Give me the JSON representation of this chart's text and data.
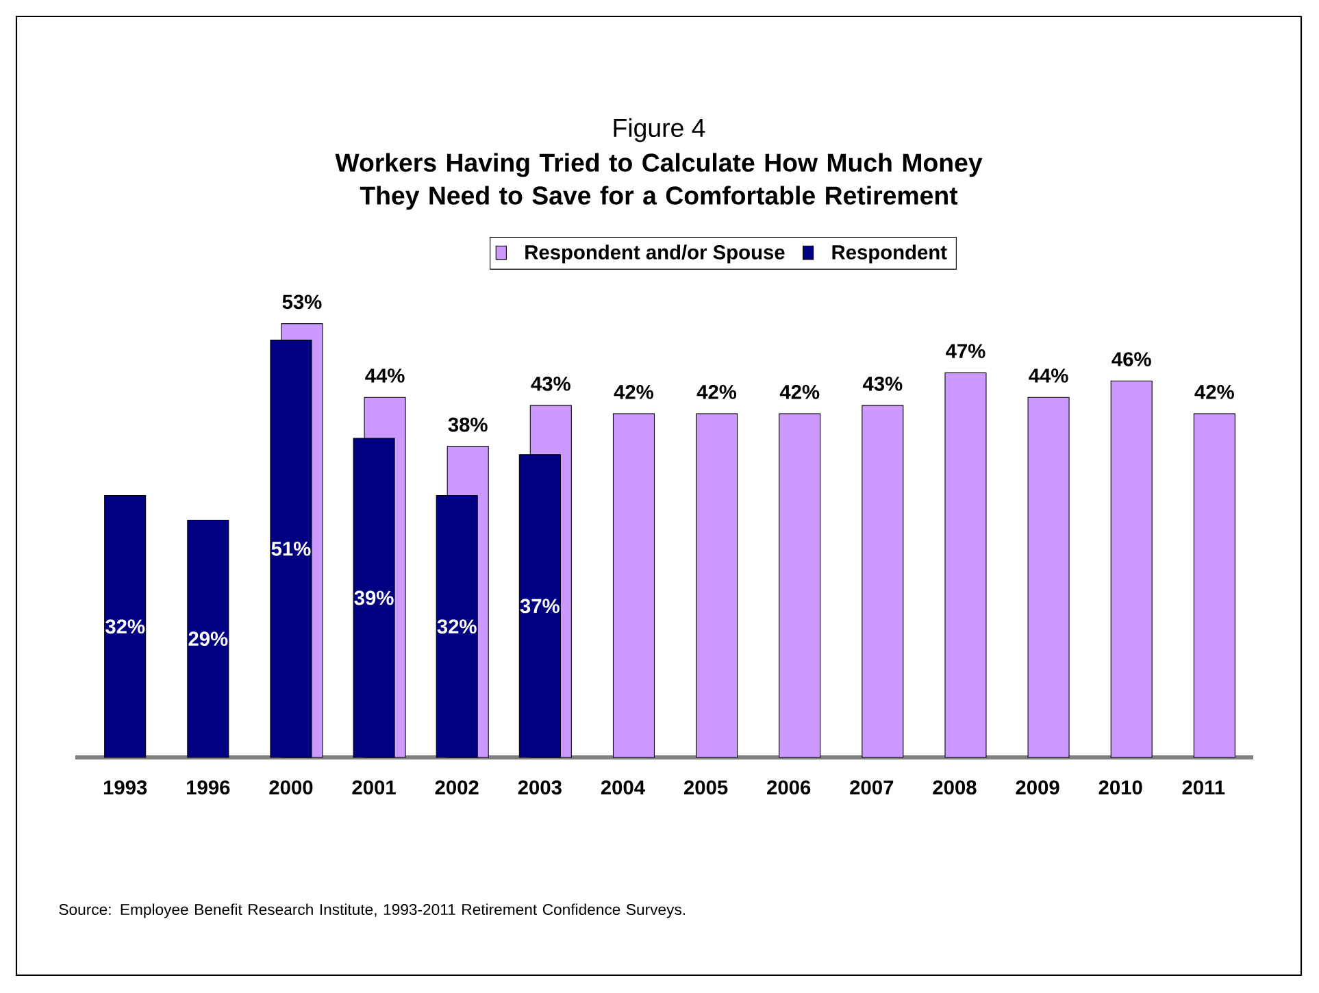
{
  "chart_data": {
    "type": "bar",
    "title": "Figure 4",
    "subtitle": "Workers Having Tried to Calculate How Much Money They Need to Save for a Comfortable Retirement",
    "categories": [
      "1993",
      "1996",
      "2000",
      "2001",
      "2002",
      "2003",
      "2004",
      "2005",
      "2006",
      "2007",
      "2008",
      "2009",
      "2010",
      "2011"
    ],
    "series": [
      {
        "name": "Respondent",
        "color": "#000080",
        "values": [
          32,
          29,
          51,
          39,
          32,
          37,
          null,
          null,
          null,
          null,
          null,
          null,
          null,
          null
        ],
        "value_labels": [
          "32%",
          "29%",
          "51%",
          "39%",
          "32%",
          "37%",
          null,
          null,
          null,
          null,
          null,
          null,
          null,
          null
        ]
      },
      {
        "name": "Respondent and/or Spouse",
        "color": "#cc99ff",
        "values": [
          null,
          null,
          53,
          44,
          38,
          43,
          42,
          42,
          42,
          43,
          47,
          44,
          46,
          42
        ],
        "value_labels": [
          null,
          null,
          "53%",
          "44%",
          "38%",
          "43%",
          "42%",
          "42%",
          "42%",
          "43%",
          "47%",
          "44%",
          "46%",
          "42%"
        ]
      }
    ],
    "legend": "top",
    "annotations": [
      "Source:  Employee Benefit Research Institute, 1993-2011 Retirement Confidence Surveys."
    ]
  }
}
